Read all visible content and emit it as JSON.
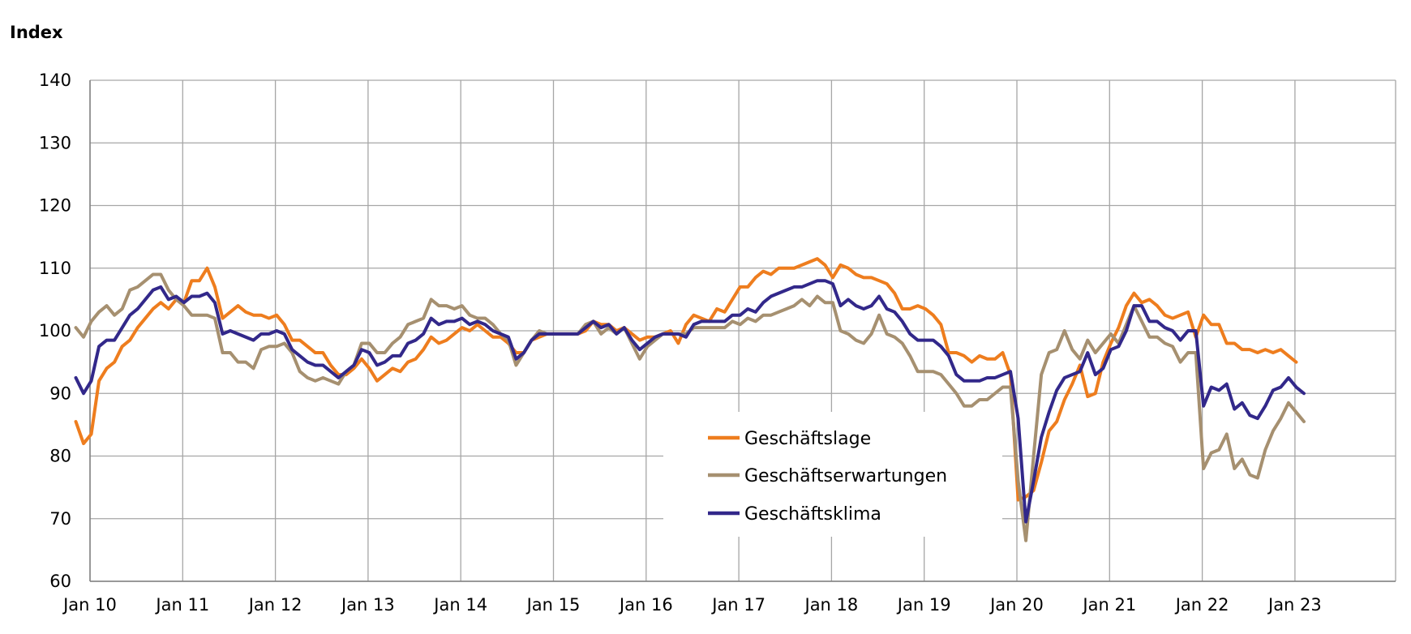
{
  "chart_data": {
    "type": "line",
    "ylabel": "Index",
    "ylim": [
      60,
      140
    ],
    "yticks": [
      60,
      70,
      80,
      90,
      100,
      110,
      120,
      130,
      140
    ],
    "xlabels": [
      "Jan 10",
      "Jan 11",
      "Jan 12",
      "Jan 13",
      "Jan 14",
      "Jan 15",
      "Jan 16",
      "Jan 17",
      "Jan 18",
      "Jan 19",
      "Jan 20",
      "Jan 21",
      "Jan 22",
      "Jan 23"
    ],
    "grid": true,
    "legend_position": "bottom-center",
    "x_start": "2010-01",
    "x_end": "2023-05",
    "series": [
      {
        "name": "Geschäftslage",
        "color": "#ee7d1e",
        "values": [
          85.5,
          82,
          83.5,
          92,
          94,
          95,
          97.5,
          98.5,
          100.5,
          102,
          103.5,
          104.5,
          103.5,
          105,
          104.5,
          108,
          108,
          110,
          107,
          102,
          103,
          104,
          103,
          102.5,
          102.5,
          102,
          102.5,
          101,
          98.5,
          98.5,
          97.5,
          96.5,
          96.5,
          94.5,
          93,
          93,
          94,
          95.5,
          94,
          92,
          93,
          94,
          93.5,
          95,
          95.5,
          97,
          99,
          98,
          98.5,
          99.5,
          100.5,
          100,
          101,
          100,
          99,
          99,
          98,
          96.5,
          96.5,
          98.5,
          99,
          99.5,
          99.5,
          99.5,
          99.5,
          99.5,
          100,
          101.5,
          101,
          101,
          100,
          100.5,
          99.5,
          98.5,
          99,
          99,
          99.5,
          100,
          98,
          101,
          102.5,
          102,
          101.5,
          103.5,
          103,
          105,
          107,
          107,
          108.5,
          109.5,
          109,
          110,
          110,
          110,
          110.5,
          111,
          111.5,
          110.5,
          108.5,
          110.5,
          110,
          109,
          108.5,
          108.5,
          108,
          107.5,
          106,
          103.5,
          103.5,
          104,
          103.5,
          102.5,
          101,
          96.5,
          96.5,
          96,
          95,
          96,
          95.5,
          95.5,
          96.5,
          93,
          73,
          73.5,
          74.5,
          79,
          84,
          85.5,
          89,
          91.5,
          94.5,
          89.5,
          90,
          95,
          98,
          100.5,
          104,
          106,
          104.5,
          105,
          104,
          102.5,
          102,
          102.5,
          103,
          99,
          102.5,
          101,
          101,
          98,
          98,
          97,
          97,
          96.5,
          97,
          96.5,
          97,
          96,
          95
        ]
      },
      {
        "name": "Geschäftserwartungen",
        "color": "#a69070",
        "values": [
          100.5,
          99,
          101.5,
          103,
          104,
          102.5,
          103.5,
          106.5,
          107,
          108,
          109,
          109,
          106.5,
          105,
          104,
          102.5,
          102.5,
          102.5,
          102,
          96.5,
          96.5,
          95,
          95,
          94,
          97,
          97.5,
          97.5,
          98,
          96.5,
          93.5,
          92.5,
          92,
          92.5,
          92,
          91.5,
          93.5,
          94.5,
          98,
          98,
          96.5,
          96.5,
          98,
          99,
          101,
          101.5,
          102,
          105,
          104,
          104,
          103.5,
          104,
          102.5,
          102,
          102,
          101,
          99.5,
          98.5,
          94.5,
          96.5,
          98.5,
          100,
          99.5,
          99.5,
          99.5,
          99.5,
          99.5,
          101,
          101.5,
          99.5,
          100.5,
          99.5,
          100.5,
          98,
          95.5,
          97.5,
          98.5,
          99.5,
          99.5,
          99.5,
          99.5,
          100.5,
          100.5,
          100.5,
          100.5,
          100.5,
          101.5,
          101,
          102,
          101.5,
          102.5,
          102.5,
          103,
          103.5,
          104,
          105,
          104,
          105.5,
          104.5,
          104.5,
          100,
          99.5,
          98.5,
          98,
          99.5,
          102.5,
          99.5,
          99,
          98,
          96,
          93.5,
          93.5,
          93.5,
          93,
          91.5,
          90,
          88,
          88,
          89,
          89,
          90,
          91,
          91,
          76,
          66.5,
          80,
          93,
          96.5,
          97,
          100,
          97,
          95.5,
          98.5,
          96.5,
          98,
          99.5,
          98,
          101,
          104,
          101.5,
          99,
          99,
          98,
          97.5,
          95,
          96.5,
          96.5,
          78,
          80.5,
          81,
          83.5,
          78,
          79.5,
          77,
          76.5,
          81,
          84,
          86,
          88.5,
          87,
          85.5
        ]
      },
      {
        "name": "Geschäftsklima",
        "color": "#32288a",
        "values": [
          92.5,
          90,
          92,
          97.5,
          98.5,
          98.5,
          100.5,
          102.5,
          103.5,
          105,
          106.5,
          107,
          105,
          105.5,
          104.5,
          105.5,
          105.5,
          106,
          104.5,
          99.5,
          100,
          99.5,
          99,
          98.5,
          99.5,
          99.5,
          100,
          99.5,
          97,
          96,
          95,
          94.5,
          94.5,
          93.5,
          92.5,
          93.5,
          94.5,
          97,
          96.5,
          94.5,
          95,
          96,
          96,
          98,
          98.5,
          99.5,
          102,
          101,
          101.5,
          101.5,
          102,
          101,
          101.5,
          101,
          100,
          99.5,
          99,
          95.5,
          96.5,
          98.5,
          99.5,
          99.5,
          99.5,
          99.5,
          99.5,
          99.5,
          100.5,
          101.5,
          100.5,
          101,
          99.5,
          100.5,
          98.5,
          97,
          98,
          99,
          99.5,
          99.5,
          99.5,
          99,
          101,
          101.5,
          101.5,
          101.5,
          101.5,
          102.5,
          102.5,
          103.5,
          103,
          104.5,
          105.5,
          106,
          106.5,
          107,
          107,
          107.5,
          108,
          108,
          107.5,
          104,
          105,
          104,
          103.5,
          104,
          105.5,
          103.5,
          103,
          101.5,
          99.5,
          98.5,
          98.5,
          98.5,
          97.5,
          96,
          93,
          92,
          92,
          92,
          92.5,
          92.5,
          93,
          93.5,
          86,
          69.5,
          76,
          83,
          87,
          90.5,
          92.5,
          93,
          93.5,
          96.5,
          93,
          94,
          97,
          97.5,
          100,
          104,
          104,
          101.5,
          101.5,
          100.5,
          100,
          98.5,
          100,
          100,
          88,
          91,
          90.5,
          91.5,
          87.5,
          88.5,
          86.5,
          86,
          88,
          90.5,
          91,
          92.5,
          91,
          90
        ]
      }
    ]
  }
}
